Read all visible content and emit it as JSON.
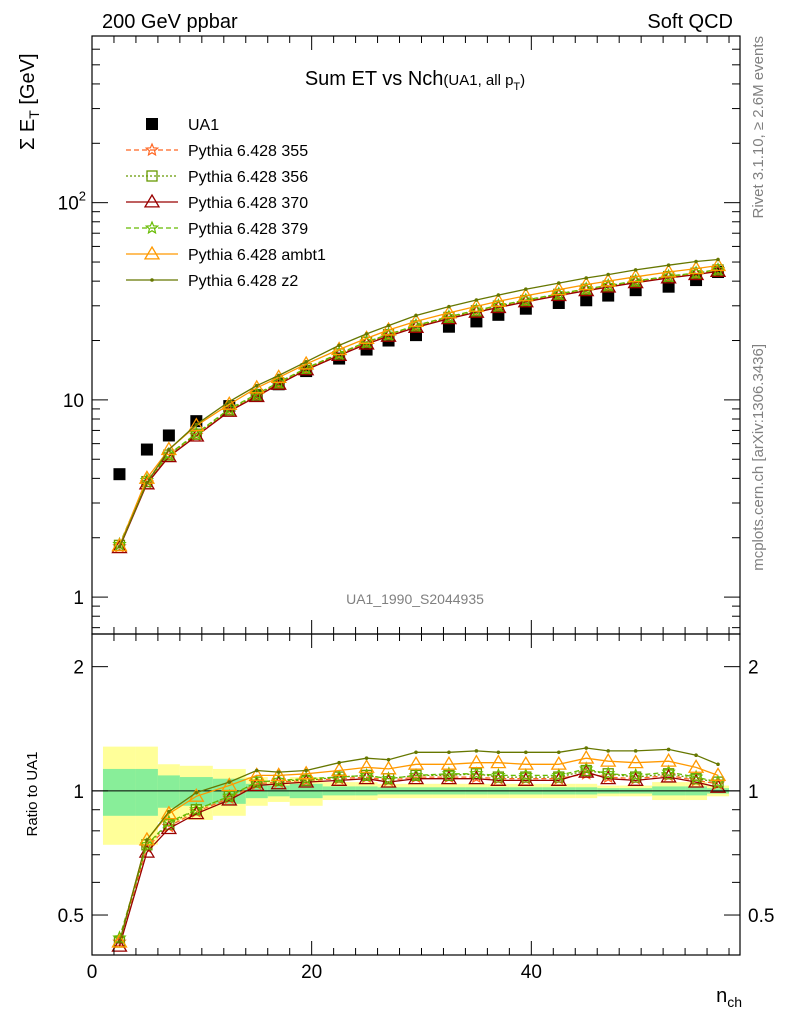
{
  "header": {
    "left": "200 GeV ppbar",
    "right": "Soft QCD"
  },
  "side_labels": {
    "rivet": "Rivet 3.1.10, ≥ 2.6M events",
    "mcplots": "mcplots.cern.ch [arXiv:1306.3436]"
  },
  "chart_data": [
    {
      "type": "scatter",
      "title_main": "Sum ET vs Nch",
      "title_sub_prefix": "(UA1, all p",
      "title_sub_subscript": "T",
      "title_sub_suffix": ")",
      "ylabel_prefix": "Σ E",
      "ylabel_subscript": "T",
      "ylabel_suffix": " [GeV]",
      "ylog": true,
      "ylim": [
        0.65,
        700
      ],
      "xlim": [
        0,
        59
      ],
      "yticks": [
        {
          "value": 1,
          "label": "1"
        },
        {
          "value": 10,
          "label": "10"
        },
        {
          "value": 100,
          "label_base": "10",
          "label_exp": "2"
        }
      ],
      "watermark": "UA1_1990_S2044935",
      "legend_position": "top-left",
      "x": [
        2.5,
        5,
        7,
        9.5,
        12.5,
        15,
        17,
        19.5,
        22.5,
        25,
        27,
        29.5,
        32.5,
        35,
        37,
        39.5,
        42.5,
        45,
        47,
        49.5,
        52.5,
        55,
        57
      ],
      "series": [
        {
          "name": "UA1",
          "style": "data",
          "color": "#000000",
          "values": [
            4.2,
            5.6,
            6.6,
            7.8,
            9.3,
            10.6,
            12.0,
            14.0,
            16.2,
            18.0,
            20.0,
            21.3,
            23.5,
            25.0,
            27.0,
            29.0,
            31.0,
            32.0,
            33.8,
            36.0,
            37.5,
            40.5,
            44.5
          ]
        },
        {
          "name": "Pythia 6.428 355",
          "style": "star-dashed",
          "color": "#ff6622",
          "values": [
            1.8,
            3.8,
            5.2,
            6.6,
            8.8,
            10.5,
            12.1,
            14.3,
            17.0,
            19.4,
            21.2,
            23.5,
            26.0,
            28.0,
            29.6,
            31.6,
            34.0,
            36.0,
            37.5,
            39.5,
            41.8,
            43.5,
            45.0
          ]
        },
        {
          "name": "Pythia 6.428 356",
          "style": "square-dotted",
          "color": "#669900",
          "values": [
            1.83,
            3.85,
            5.25,
            6.7,
            8.9,
            10.6,
            12.2,
            14.4,
            17.1,
            19.6,
            21.4,
            23.7,
            26.2,
            28.3,
            29.9,
            31.9,
            34.3,
            36.4,
            37.8,
            39.9,
            42.2,
            43.9,
            45.6
          ]
        },
        {
          "name": "Pythia 6.428 370",
          "style": "triangle-solid",
          "color": "#990000",
          "values": [
            1.78,
            3.75,
            5.15,
            6.55,
            8.75,
            10.4,
            12.0,
            14.2,
            16.8,
            19.2,
            21.0,
            23.3,
            25.8,
            27.8,
            29.4,
            31.4,
            33.8,
            35.8,
            37.3,
            39.3,
            41.5,
            43.2,
            44.8
          ]
        },
        {
          "name": "Pythia 6.428 379",
          "style": "star-dashed",
          "color": "#66bb00",
          "values": [
            1.85,
            3.9,
            5.3,
            6.75,
            9.0,
            10.7,
            12.3,
            14.5,
            17.2,
            19.7,
            21.5,
            23.9,
            26.4,
            28.5,
            30.1,
            32.1,
            34.5,
            36.6,
            38.0,
            40.1,
            42.4,
            44.1,
            45.8
          ]
        },
        {
          "name": "Pythia 6.428 ambt1",
          "style": "triangle-solid",
          "color": "#ff9900",
          "values": [
            1.82,
            4.0,
            5.6,
            7.4,
            9.5,
            11.5,
            13.0,
            15.2,
            18.0,
            20.5,
            22.6,
            25.0,
            27.6,
            29.8,
            31.6,
            33.7,
            36.2,
            38.4,
            40.0,
            42.1,
            44.5,
            46.3,
            48.0
          ]
        },
        {
          "name": "Pythia 6.428 z2",
          "style": "dot-solid",
          "color": "#667700",
          "values": [
            1.8,
            3.8,
            5.6,
            7.5,
            9.8,
            11.8,
            13.3,
            15.6,
            18.9,
            21.6,
            23.8,
            26.8,
            29.7,
            32.1,
            34.0,
            36.4,
            39.1,
            41.5,
            43.2,
            45.6,
            48.2,
            50.3,
            51.5
          ]
        }
      ]
    },
    {
      "type": "scatter",
      "ylabel": "Ratio to UA1",
      "xlabel_base": "n",
      "xlabel_subscript": "ch",
      "ylim": [
        0.4,
        2.4
      ],
      "xlim": [
        0,
        59
      ],
      "yticks": [
        {
          "value": 0.5,
          "label": "0.5"
        },
        {
          "value": 1,
          "label": "1"
        },
        {
          "value": 2,
          "label": "2"
        }
      ],
      "xticks": [
        {
          "value": 0,
          "label": "0"
        },
        {
          "value": 20,
          "label": "20"
        },
        {
          "value": 40,
          "label": "40"
        }
      ],
      "bands": {
        "bin_edges": [
          1,
          4,
          6,
          8,
          11,
          14,
          16,
          18,
          21,
          24,
          26,
          28,
          31,
          34,
          36,
          38,
          41,
          44,
          46,
          48,
          51,
          54,
          56,
          58
        ],
        "yellow_lo": [
          0.74,
          0.74,
          0.84,
          0.85,
          0.87,
          0.92,
          0.94,
          0.92,
          0.95,
          0.95,
          0.96,
          0.96,
          0.96,
          0.96,
          0.96,
          0.96,
          0.96,
          0.96,
          0.97,
          0.97,
          0.95,
          0.95,
          0.97,
          0.91
        ],
        "yellow_hi": [
          1.28,
          1.28,
          1.16,
          1.15,
          1.13,
          1.08,
          1.06,
          1.08,
          1.05,
          1.05,
          1.04,
          1.04,
          1.04,
          1.04,
          1.04,
          1.04,
          1.04,
          1.04,
          1.03,
          1.03,
          1.05,
          1.05,
          1.03,
          1.09
        ],
        "green_lo": [
          0.87,
          0.87,
          0.91,
          0.92,
          0.93,
          0.96,
          0.97,
          0.96,
          0.975,
          0.975,
          0.98,
          0.98,
          0.98,
          0.98,
          0.98,
          0.98,
          0.98,
          0.98,
          0.985,
          0.985,
          0.975,
          0.975,
          0.985,
          0.955
        ],
        "green_hi": [
          1.13,
          1.13,
          1.09,
          1.08,
          1.07,
          1.04,
          1.03,
          1.04,
          1.025,
          1.025,
          1.02,
          1.02,
          1.02,
          1.02,
          1.02,
          1.02,
          1.02,
          1.02,
          1.015,
          1.015,
          1.025,
          1.025,
          1.015,
          1.045
        ],
        "yellow_color": "#ffff99",
        "green_color": "#88ee99"
      },
      "x": [
        2.5,
        5,
        7,
        9.5,
        12.5,
        15,
        17,
        19.5,
        22.5,
        25,
        27,
        29.5,
        32.5,
        35,
        37,
        39.5,
        42.5,
        45,
        47,
        49.5,
        52.5,
        55,
        57
      ],
      "series": [
        {
          "name": "Pythia 6.428 355",
          "style": "star-dashed",
          "color": "#ff6622",
          "values": [
            0.43,
            0.73,
            0.82,
            0.89,
            0.96,
            1.04,
            1.05,
            1.06,
            1.07,
            1.08,
            1.06,
            1.08,
            1.08,
            1.08,
            1.07,
            1.07,
            1.07,
            1.1,
            1.08,
            1.07,
            1.09,
            1.06,
            1.04
          ]
        },
        {
          "name": "Pythia 6.428 356",
          "style": "square-dotted",
          "color": "#669900",
          "values": [
            0.43,
            0.74,
            0.83,
            0.9,
            0.97,
            1.05,
            1.06,
            1.06,
            1.08,
            1.09,
            1.07,
            1.09,
            1.09,
            1.1,
            1.08,
            1.08,
            1.08,
            1.12,
            1.1,
            1.08,
            1.1,
            1.07,
            1.05
          ]
        },
        {
          "name": "Pythia 6.428 370",
          "style": "triangle-solid",
          "color": "#990000",
          "values": [
            0.42,
            0.71,
            0.81,
            0.88,
            0.95,
            1.03,
            1.04,
            1.05,
            1.06,
            1.07,
            1.05,
            1.07,
            1.07,
            1.07,
            1.06,
            1.06,
            1.06,
            1.11,
            1.07,
            1.06,
            1.08,
            1.05,
            1.02
          ]
        },
        {
          "name": "Pythia 6.428 379",
          "style": "star-dashed",
          "color": "#66bb00",
          "values": [
            0.44,
            0.74,
            0.84,
            0.9,
            0.97,
            1.05,
            1.06,
            1.07,
            1.08,
            1.09,
            1.07,
            1.09,
            1.1,
            1.1,
            1.09,
            1.09,
            1.09,
            1.13,
            1.1,
            1.09,
            1.11,
            1.08,
            1.05
          ]
        },
        {
          "name": "Pythia 6.428 ambt1",
          "style": "triangle-solid",
          "color": "#ff9900",
          "values": [
            0.43,
            0.76,
            0.88,
            0.97,
            1.03,
            1.09,
            1.09,
            1.1,
            1.12,
            1.14,
            1.13,
            1.16,
            1.16,
            1.17,
            1.17,
            1.16,
            1.16,
            1.2,
            1.18,
            1.17,
            1.18,
            1.14,
            1.09
          ]
        },
        {
          "name": "Pythia 6.428 z2",
          "style": "dot-solid",
          "color": "#667700",
          "values": [
            0.43,
            0.76,
            0.89,
            0.99,
            1.05,
            1.12,
            1.11,
            1.12,
            1.17,
            1.2,
            1.19,
            1.24,
            1.24,
            1.25,
            1.24,
            1.24,
            1.24,
            1.27,
            1.25,
            1.25,
            1.26,
            1.22,
            1.16
          ]
        }
      ]
    }
  ]
}
